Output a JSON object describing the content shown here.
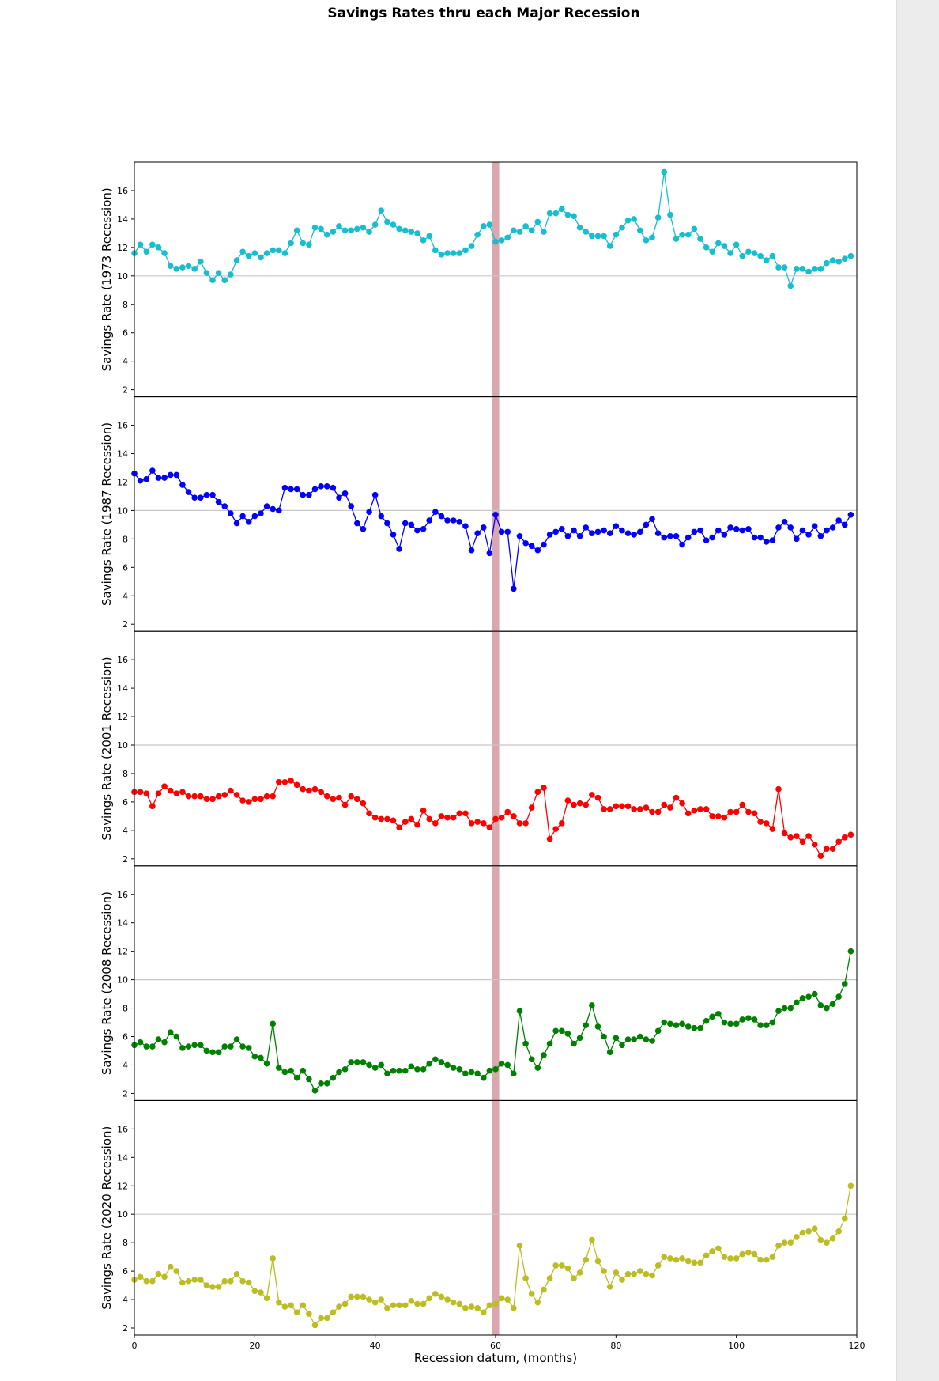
{
  "chart_data": {
    "type": "line",
    "title": "Savings Rates thru each Major Recession",
    "xlabel": "Recession datum, (months)",
    "xlim": [
      0,
      120
    ],
    "ylim": [
      1.5,
      18.0
    ],
    "xticks": [
      0,
      20,
      40,
      60,
      80,
      100,
      120
    ],
    "yticks": [
      2,
      4,
      6,
      8,
      10,
      12,
      14,
      16
    ],
    "reference_line_y": 10,
    "recession_band": {
      "x_start": 59.4,
      "x_end": 60.6,
      "color": "#d9a7ad"
    },
    "grid": false,
    "legend": "none",
    "series": [
      {
        "ylabel": "Savings Rate (1973 Recession)",
        "color": "#17becf",
        "values": [
          11.6,
          12.2,
          11.7,
          12.2,
          12.0,
          11.6,
          10.7,
          10.5,
          10.6,
          10.7,
          10.5,
          11.0,
          10.2,
          9.7,
          10.2,
          9.7,
          10.1,
          11.1,
          11.7,
          11.4,
          11.6,
          11.3,
          11.6,
          11.8,
          11.8,
          11.6,
          12.3,
          13.2,
          12.3,
          12.2,
          13.4,
          13.3,
          12.9,
          13.1,
          13.5,
          13.2,
          13.2,
          13.3,
          13.4,
          13.1,
          13.6,
          14.6,
          13.8,
          13.6,
          13.3,
          13.2,
          13.1,
          13.0,
          12.5,
          12.8,
          11.8,
          11.5,
          11.6,
          11.6,
          11.6,
          11.8,
          12.1,
          12.9,
          13.5,
          13.6,
          12.4,
          12.5,
          12.7,
          13.2,
          13.1,
          13.5,
          13.2,
          13.8,
          13.1,
          14.4,
          14.4,
          14.7,
          14.3,
          14.2,
          13.4,
          13.1,
          12.8,
          12.8,
          12.8,
          12.1,
          12.9,
          13.4,
          13.9,
          14.0,
          13.2,
          12.5,
          12.7,
          14.1,
          17.3,
          14.3,
          12.6,
          12.9,
          12.9,
          13.3,
          12.6,
          12.0,
          11.7,
          12.3,
          12.1,
          11.6,
          12.2,
          11.4,
          11.7,
          11.6,
          11.4,
          11.1,
          11.4,
          10.6,
          10.6,
          9.3,
          10.5,
          10.5,
          10.3,
          10.5,
          10.5,
          10.9,
          11.1,
          11.0,
          11.2,
          11.4
        ]
      },
      {
        "ylabel": "Savings Rate (1987 Recession)",
        "color": "#0000ff",
        "values": [
          12.6,
          12.1,
          12.2,
          12.8,
          12.3,
          12.3,
          12.5,
          12.5,
          11.8,
          11.3,
          10.9,
          10.9,
          11.1,
          11.1,
          10.6,
          10.3,
          9.8,
          9.1,
          9.6,
          9.2,
          9.6,
          9.8,
          10.3,
          10.1,
          10.0,
          11.6,
          11.5,
          11.5,
          11.1,
          11.1,
          11.5,
          11.7,
          11.7,
          11.6,
          10.9,
          11.2,
          10.3,
          9.1,
          8.7,
          9.9,
          11.1,
          9.6,
          9.1,
          8.3,
          7.3,
          9.1,
          9.0,
          8.6,
          8.7,
          9.3,
          9.9,
          9.6,
          9.3,
          9.3,
          9.2,
          8.9,
          7.2,
          8.4,
          8.8,
          7.0,
          9.7,
          8.5,
          8.5,
          4.5,
          8.2,
          7.7,
          7.5,
          7.2,
          7.6,
          8.3,
          8.5,
          8.7,
          8.2,
          8.6,
          8.2,
          8.8,
          8.4,
          8.5,
          8.6,
          8.4,
          8.9,
          8.6,
          8.4,
          8.3,
          8.5,
          9.0,
          9.4,
          8.4,
          8.1,
          8.2,
          8.2,
          7.6,
          8.1,
          8.5,
          8.6,
          7.9,
          8.1,
          8.6,
          8.3,
          8.8,
          8.7,
          8.6,
          8.7,
          8.1,
          8.1,
          7.8,
          7.9,
          8.8,
          9.2,
          8.8,
          8.0,
          8.6,
          8.3,
          8.9,
          8.2,
          8.6,
          8.8,
          9.3,
          9.0,
          9.7
        ]
      },
      {
        "ylabel": "Savings Rate (2001 Recession)",
        "color": "#ff0000",
        "values": [
          6.7,
          6.7,
          6.6,
          5.7,
          6.6,
          7.1,
          6.8,
          6.6,
          6.7,
          6.4,
          6.4,
          6.4,
          6.2,
          6.2,
          6.4,
          6.5,
          6.8,
          6.5,
          6.1,
          6.0,
          6.2,
          6.2,
          6.4,
          6.4,
          7.4,
          7.4,
          7.5,
          7.2,
          6.9,
          6.8,
          6.9,
          6.7,
          6.4,
          6.2,
          6.3,
          5.8,
          6.4,
          6.2,
          5.9,
          5.2,
          4.9,
          4.8,
          4.8,
          4.7,
          4.2,
          4.6,
          4.8,
          4.4,
          5.4,
          4.8,
          4.5,
          5.0,
          4.9,
          4.9,
          5.2,
          5.2,
          4.5,
          4.6,
          4.5,
          4.2,
          4.8,
          4.9,
          5.3,
          5.0,
          4.5,
          4.5,
          5.6,
          6.7,
          7.0,
          3.4,
          4.1,
          4.5,
          6.1,
          5.8,
          5.9,
          5.8,
          6.5,
          6.3,
          5.5,
          5.5,
          5.7,
          5.7,
          5.7,
          5.5,
          5.5,
          5.6,
          5.3,
          5.3,
          5.8,
          5.6,
          6.3,
          5.9,
          5.2,
          5.4,
          5.5,
          5.5,
          5.0,
          5.0,
          4.9,
          5.3,
          5.3,
          5.8,
          5.3,
          5.2,
          4.6,
          4.5,
          4.1,
          6.9,
          3.8,
          3.5,
          3.6,
          3.2,
          3.6,
          3.0,
          2.2,
          2.7,
          2.7,
          3.2,
          3.5,
          3.7
        ]
      },
      {
        "ylabel": "Savings Rate (2008 Recession)",
        "color": "#008000",
        "values": [
          5.4,
          5.6,
          5.3,
          5.3,
          5.8,
          5.6,
          6.3,
          6.0,
          5.2,
          5.3,
          5.4,
          5.4,
          5.0,
          4.9,
          4.9,
          5.3,
          5.3,
          5.8,
          5.3,
          5.2,
          4.6,
          4.5,
          4.1,
          6.9,
          3.8,
          3.5,
          3.6,
          3.1,
          3.6,
          3.0,
          2.2,
          2.7,
          2.7,
          3.1,
          3.5,
          3.7,
          4.2,
          4.2,
          4.2,
          4.0,
          3.8,
          4.0,
          3.4,
          3.6,
          3.6,
          3.6,
          3.9,
          3.7,
          3.7,
          4.1,
          4.4,
          4.2,
          4.0,
          3.8,
          3.7,
          3.4,
          3.5,
          3.4,
          3.1,
          3.6,
          3.7,
          4.1,
          4.0,
          3.4,
          7.8,
          5.5,
          4.4,
          3.8,
          4.7,
          5.5,
          6.4,
          6.4,
          6.2,
          5.5,
          5.9,
          6.8,
          8.2,
          6.7,
          6.0,
          4.9,
          5.9,
          5.4,
          5.8,
          5.8,
          6.0,
          5.8,
          5.7,
          6.4,
          7.0,
          6.9,
          6.8,
          6.9,
          6.7,
          6.6,
          6.6,
          7.1,
          7.4,
          7.6,
          7.0,
          6.9,
          6.9,
          7.2,
          7.3,
          7.2,
          6.8,
          6.8,
          7.0,
          7.8,
          8.0,
          8.0,
          8.4,
          8.7,
          8.8,
          9.0,
          8.2,
          8.0,
          8.3,
          8.8,
          9.7,
          12.0
        ]
      },
      {
        "ylabel": "Savings Rate (2020 Recession)",
        "color": "#bcbd22",
        "values": [
          5.4,
          5.6,
          5.3,
          5.3,
          5.8,
          5.6,
          6.3,
          6.0,
          5.2,
          5.3,
          5.4,
          5.4,
          5.0,
          4.9,
          4.9,
          5.3,
          5.3,
          5.8,
          5.3,
          5.2,
          4.6,
          4.5,
          4.1,
          6.9,
          3.8,
          3.5,
          3.6,
          3.1,
          3.6,
          3.0,
          2.2,
          2.7,
          2.7,
          3.1,
          3.5,
          3.7,
          4.2,
          4.2,
          4.2,
          4.0,
          3.8,
          4.0,
          3.4,
          3.6,
          3.6,
          3.6,
          3.9,
          3.7,
          3.7,
          4.1,
          4.4,
          4.2,
          4.0,
          3.8,
          3.7,
          3.4,
          3.5,
          3.4,
          3.1,
          3.6,
          3.7,
          4.1,
          4.0,
          3.4,
          7.8,
          5.5,
          4.4,
          3.8,
          4.7,
          5.5,
          6.4,
          6.4,
          6.2,
          5.5,
          5.9,
          6.8,
          8.2,
          6.7,
          6.0,
          4.9,
          5.9,
          5.4,
          5.8,
          5.8,
          6.0,
          5.8,
          5.7,
          6.4,
          7.0,
          6.9,
          6.8,
          6.9,
          6.7,
          6.6,
          6.6,
          7.1,
          7.4,
          7.6,
          7.0,
          6.9,
          6.9,
          7.2,
          7.3,
          7.2,
          6.8,
          6.8,
          7.0,
          7.8,
          8.0,
          8.0,
          8.4,
          8.7,
          8.8,
          9.0,
          8.2,
          8.0,
          8.3,
          8.8,
          9.7,
          12.0
        ]
      }
    ]
  }
}
